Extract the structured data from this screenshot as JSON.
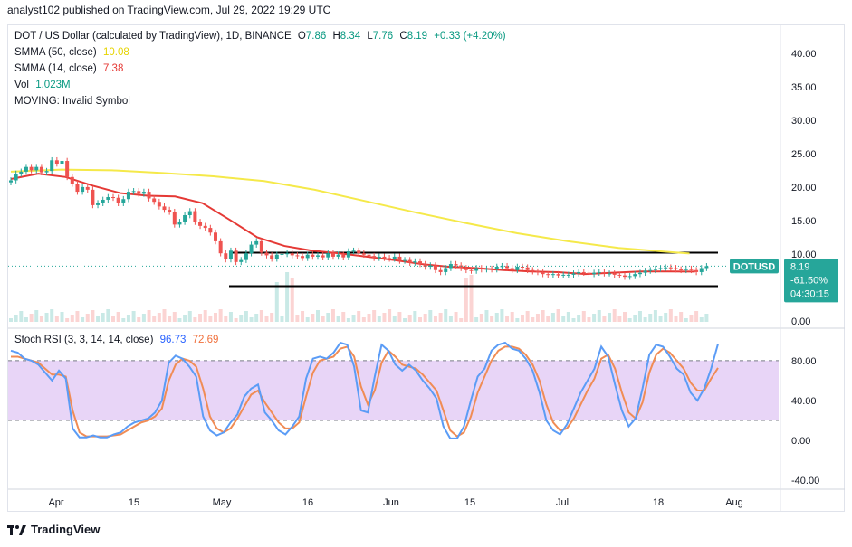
{
  "header": {
    "text": "analyst102 published on TradingView.com, Jul 29, 2022 19:29 UTC"
  },
  "legend": {
    "symbol": "DOT / US Dollar (calculated by TradingView), 1D, BINANCE",
    "open_label": "O",
    "open": "7.86",
    "high_label": "H",
    "high": "8.34",
    "low_label": "L",
    "low": "7.76",
    "close_label": "C",
    "close": "8.19",
    "change": "+0.33 (+4.20%)",
    "smma50_label": "SMMA (50, close)",
    "smma50_value": "10.08",
    "smma14_label": "SMMA (14, close)",
    "smma14_value": "7.38",
    "vol_label": "Vol",
    "vol_value": "1.023M",
    "moving_label": "MOVING: Invalid Symbol",
    "stoch_label": "Stoch RSI (3, 3, 14, 14, close)",
    "stoch_k": "96.73",
    "stoch_d": "72.69"
  },
  "price_tag": {
    "symbol": "DOTUSD",
    "price": "8.19",
    "change": "-61.50%",
    "countdown": "04:30:15"
  },
  "footer": {
    "brand": "TradingView"
  },
  "colors": {
    "up": "#26a69a",
    "down": "#ef5350",
    "smma50": "#f5e94a",
    "smma14": "#e53935",
    "k": "#5b9cf6",
    "d": "#f08c55",
    "rsi_band": "#e8d5f7",
    "levels": "#000000"
  },
  "chart_data": [
    {
      "type": "candlestick",
      "title": "DOT / US Dollar (calculated by TradingView), 1D, BINANCE",
      "x_ticks": [
        "Apr",
        "15",
        "May",
        "16",
        "Jun",
        "15",
        "Jul",
        "18",
        "Aug"
      ],
      "y_ticks": [
        "40.00",
        "35.00",
        "30.00",
        "25.00",
        "20.00",
        "15.00",
        "10.00",
        "5.00",
        "0.00"
      ],
      "ylim": [
        0,
        42
      ],
      "series": [
        {
          "name": "SMMA (50, close)",
          "type": "line",
          "points": [
            [
              0,
              22.3
            ],
            [
              20,
              22.6
            ],
            [
              40,
              22.5
            ],
            [
              60,
              22.1
            ],
            [
              80,
              21.6
            ],
            [
              100,
              20.9
            ],
            [
              120,
              19.6
            ],
            [
              140,
              17.9
            ],
            [
              160,
              16.2
            ],
            [
              180,
              14.6
            ],
            [
              200,
              13.1
            ],
            [
              220,
              11.9
            ],
            [
              240,
              10.9
            ],
            [
              260,
              10.3
            ],
            [
              268,
              10.08
            ]
          ]
        },
        {
          "name": "SMMA (14, close)",
          "type": "line",
          "points": [
            [
              0,
              21.2
            ],
            [
              10,
              22.0
            ],
            [
              20,
              21.5
            ],
            [
              30,
              20.2
            ],
            [
              40,
              19.1
            ],
            [
              50,
              18.7
            ],
            [
              60,
              18.6
            ],
            [
              70,
              17.6
            ],
            [
              80,
              15.1
            ],
            [
              90,
              12.5
            ],
            [
              100,
              11.2
            ],
            [
              110,
              10.5
            ],
            [
              120,
              10.1
            ],
            [
              130,
              9.6
            ],
            [
              140,
              9.1
            ],
            [
              150,
              8.5
            ],
            [
              160,
              8.1
            ],
            [
              170,
              7.9
            ],
            [
              180,
              7.6
            ],
            [
              190,
              7.4
            ],
            [
              200,
              7.3
            ],
            [
              210,
              7.0
            ],
            [
              220,
              7.2
            ],
            [
              230,
              7.4
            ],
            [
              240,
              7.4
            ],
            [
              250,
              7.38
            ]
          ]
        },
        {
          "name": "closes",
          "type": "candles",
          "values": [
            21,
            22,
            22.3,
            23,
            22.5,
            23,
            22.2,
            22.4,
            24,
            23.5,
            23.9,
            21.5,
            20.5,
            19.3,
            20,
            19.6,
            17.3,
            17.6,
            18.1,
            18.5,
            18.4,
            17.6,
            18.2,
            19.3,
            19.4,
            19,
            19.3,
            18.3,
            17.8,
            17.1,
            16.6,
            16.3,
            14.4,
            14.8,
            15.8,
            16.4,
            14.8,
            14.2,
            13.9,
            13.2,
            11.9,
            10.1,
            9.2,
            10.5,
            8.8,
            9.1,
            10.1,
            11.4,
            11.9,
            10.2,
            9.8,
            9.3,
            9.9,
            10,
            10.1,
            9.8,
            9.7,
            9.4,
            9.9,
            9.6,
            9.8,
            9.5,
            10.1,
            9.6,
            9.9,
            9.5,
            10.4,
            10.5,
            10.1,
            9.9,
            9.7,
            9.4,
            9.6,
            9.4,
            9.3,
            9.6,
            9.0,
            9.1,
            8.7,
            8.9,
            8.5,
            8.1,
            8.3,
            7.6,
            7.3,
            7.9,
            8.5,
            8.3,
            7.9,
            7.6,
            7.5,
            7.9,
            7.7,
            7.8,
            7.7,
            8.1,
            8.2,
            7.9,
            7.6,
            8.1,
            8.0,
            7.6,
            7.4,
            7.3,
            7.0,
            6.9,
            7.0,
            6.8,
            6.9,
            6.9,
            7.1,
            7.3,
            7.2,
            7.0,
            7.2,
            7.3,
            7.1,
            7.1,
            6.9,
            6.8,
            6.6,
            6.7,
            7.0,
            7.2,
            7.5,
            7.6,
            7.8,
            7.9,
            8.0,
            7.9,
            7.7,
            7.6,
            7.8,
            7.6,
            7.3,
            7.9,
            8.19
          ]
        },
        {
          "name": "Vol",
          "type": "bar",
          "value": "1.023M"
        }
      ],
      "horizontal_levels": [
        10.2,
        5.2
      ]
    },
    {
      "type": "line",
      "title": "Stoch RSI (3, 3, 14, 14, close)",
      "y_ticks": [
        "80.00",
        "40.00",
        "0.00",
        "-40.00"
      ],
      "ylim": [
        -48,
        108
      ],
      "band": [
        20,
        80
      ],
      "series": [
        {
          "name": "K",
          "values": [
            90,
            88,
            82,
            80,
            76,
            68,
            60,
            70,
            62,
            12,
            3,
            3,
            5,
            3,
            3,
            6,
            8,
            14,
            18,
            20,
            22,
            28,
            40,
            78,
            85,
            82,
            74,
            64,
            24,
            10,
            5,
            8,
            18,
            26,
            44,
            52,
            56,
            28,
            20,
            10,
            6,
            14,
            24,
            62,
            82,
            84,
            82,
            88,
            98,
            96,
            74,
            30,
            28,
            64,
            96,
            90,
            76,
            70,
            76,
            70,
            60,
            52,
            42,
            14,
            2,
            2,
            14,
            40,
            64,
            72,
            90,
            96,
            98,
            92,
            90,
            82,
            70,
            48,
            20,
            10,
            6,
            16,
            32,
            48,
            60,
            72,
            94,
            84,
            56,
            30,
            14,
            22,
            52,
            86,
            96,
            94,
            84,
            72,
            66,
            48,
            40,
            52,
            72,
            96.73
          ]
        },
        {
          "name": "D",
          "values": [
            84,
            84,
            82,
            80,
            78,
            72,
            66,
            66,
            64,
            30,
            8,
            4,
            4,
            4,
            4,
            5,
            6,
            10,
            14,
            18,
            20,
            24,
            32,
            60,
            76,
            82,
            80,
            74,
            52,
            24,
            12,
            8,
            12,
            22,
            34,
            46,
            50,
            38,
            28,
            18,
            12,
            12,
            18,
            44,
            68,
            80,
            82,
            84,
            92,
            94,
            84,
            54,
            36,
            50,
            78,
            90,
            84,
            76,
            74,
            72,
            66,
            58,
            50,
            30,
            10,
            4,
            8,
            24,
            48,
            64,
            80,
            90,
            94,
            94,
            92,
            86,
            76,
            60,
            36,
            18,
            10,
            12,
            22,
            36,
            50,
            62,
            82,
            86,
            72,
            48,
            28,
            22,
            38,
            68,
            86,
            92,
            88,
            80,
            72,
            58,
            50,
            50,
            62,
            72.69
          ]
        }
      ]
    }
  ]
}
